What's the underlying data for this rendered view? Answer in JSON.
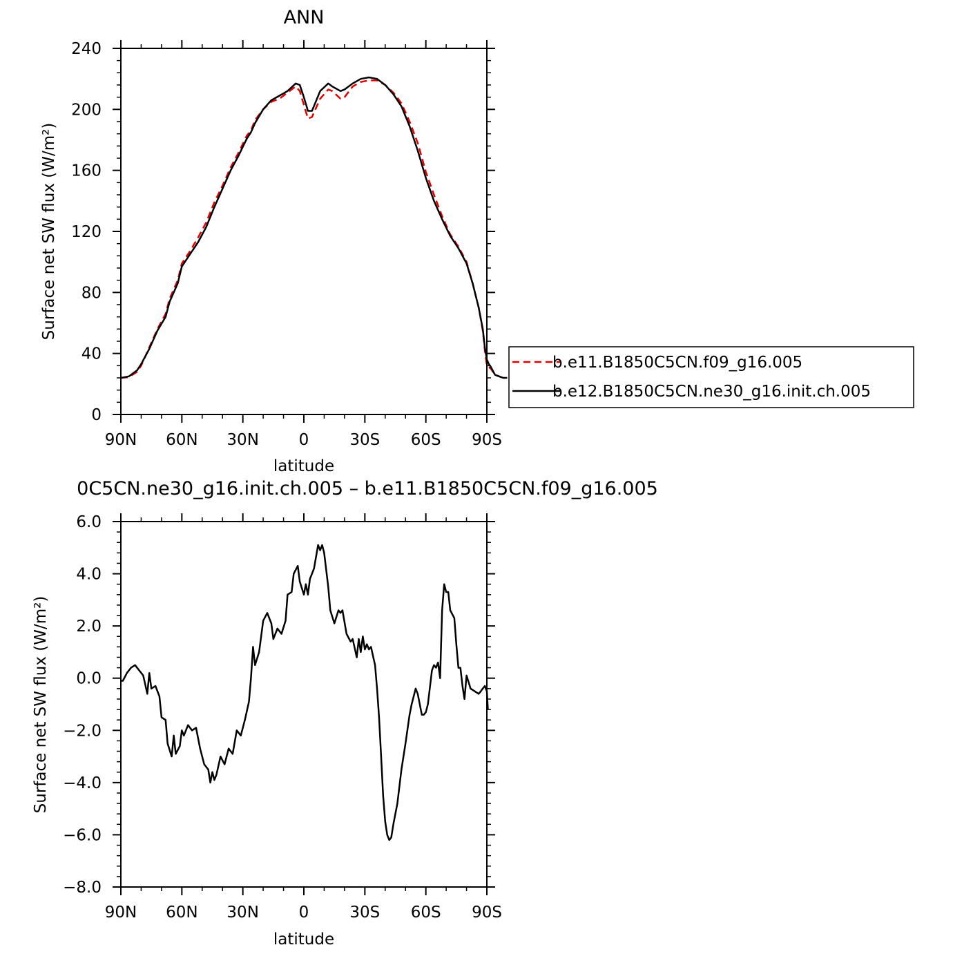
{
  "chart_data": [
    {
      "type": "line",
      "title": "ANN",
      "xlabel": "latitude",
      "ylabel": "Surface net SW flux (W/m²)",
      "xlim": [
        90,
        -90
      ],
      "ylim": [
        0,
        240
      ],
      "xticks": [
        90,
        60,
        30,
        0,
        -30,
        -60,
        -90
      ],
      "xtick_labels": [
        "90N",
        "60N",
        "30N",
        "0",
        "30S",
        "60S",
        "90S"
      ],
      "yticks": [
        0,
        40,
        80,
        120,
        160,
        200,
        240
      ],
      "ytick_labels": [
        "0",
        "40",
        "80",
        "120",
        "160",
        "200",
        "240"
      ],
      "legend": "right",
      "series": [
        {
          "name": "b.e11.B1850C5CN.f09_g16.005",
          "color": "#e00000",
          "dash": "dashed",
          "points": [
            [
              90,
              24
            ],
            [
              86,
              24.5
            ],
            [
              82,
              28
            ],
            [
              80,
              32
            ],
            [
              76,
              44
            ],
            [
              72,
              56
            ],
            [
              68,
              66
            ],
            [
              66,
              76
            ],
            [
              62,
              88
            ],
            [
              60,
              99
            ],
            [
              56,
              107
            ],
            [
              52,
              116
            ],
            [
              48,
              126
            ],
            [
              44,
              139
            ],
            [
              40,
              150
            ],
            [
              36,
              162
            ],
            [
              32,
              172
            ],
            [
              28,
              183
            ],
            [
              26,
              186
            ],
            [
              24,
              193
            ],
            [
              20,
              200
            ],
            [
              16,
              205
            ],
            [
              12,
              207
            ],
            [
              8,
              211
            ],
            [
              4,
              215
            ],
            [
              2,
              212
            ],
            [
              0,
              203
            ],
            [
              -2,
              194
            ],
            [
              -4,
              195
            ],
            [
              -8,
              207
            ],
            [
              -12,
              213
            ],
            [
              -14,
              212
            ],
            [
              -18,
              207
            ],
            [
              -20,
              208
            ],
            [
              -24,
              215
            ],
            [
              -28,
              218
            ],
            [
              -32,
              219
            ],
            [
              -36,
              219
            ],
            [
              -40,
              216
            ],
            [
              -44,
              211
            ],
            [
              -48,
              204
            ],
            [
              -52,
              192
            ],
            [
              -56,
              178
            ],
            [
              -60,
              159
            ],
            [
              -64,
              144
            ],
            [
              -68,
              130
            ],
            [
              -72,
              118
            ],
            [
              -76,
              110
            ],
            [
              -80,
              100
            ],
            [
              -83,
              86
            ],
            [
              -86,
              70
            ],
            [
              -88,
              55
            ],
            [
              -89,
              42
            ],
            [
              -90,
              32
            ],
            [
              -91,
              31
            ],
            [
              -92,
              30
            ],
            [
              -94,
              26
            ],
            [
              -96,
              25
            ],
            [
              -98,
              24
            ],
            [
              -100,
              24
            ]
          ]
        },
        {
          "name": "b.e12.B1850C5CN.ne30_g16.init.ch.005",
          "color": "#000000",
          "dash": "solid",
          "points": [
            [
              90,
              24
            ],
            [
              86,
              25
            ],
            [
              82,
              29
            ],
            [
              80,
              33
            ],
            [
              76,
              43
            ],
            [
              72,
              55
            ],
            [
              68,
              64
            ],
            [
              66,
              74
            ],
            [
              62,
              86
            ],
            [
              60,
              97
            ],
            [
              56,
              105
            ],
            [
              52,
              113
            ],
            [
              48,
              123
            ],
            [
              44,
              136
            ],
            [
              40,
              148
            ],
            [
              36,
              160
            ],
            [
              32,
              170
            ],
            [
              28,
              181
            ],
            [
              26,
              185
            ],
            [
              24,
              191
            ],
            [
              20,
              200
            ],
            [
              16,
              206
            ],
            [
              12,
              209
            ],
            [
              8,
              212
            ],
            [
              4,
              217
            ],
            [
              2,
              216
            ],
            [
              0,
              208
            ],
            [
              -2,
              199
            ],
            [
              -4,
              199
            ],
            [
              -8,
              212
            ],
            [
              -12,
              217
            ],
            [
              -14,
              215
            ],
            [
              -18,
              212
            ],
            [
              -20,
              213
            ],
            [
              -24,
              217
            ],
            [
              -28,
              220
            ],
            [
              -32,
              221
            ],
            [
              -36,
              220
            ],
            [
              -40,
              216
            ],
            [
              -44,
              210
            ],
            [
              -48,
              202
            ],
            [
              -52,
              189
            ],
            [
              -56,
              173
            ],
            [
              -60,
              155
            ],
            [
              -64,
              140
            ],
            [
              -68,
              128
            ],
            [
              -72,
              117
            ],
            [
              -76,
              109
            ],
            [
              -80,
              99
            ],
            [
              -83,
              86
            ],
            [
              -86,
              70
            ],
            [
              -88,
              56
            ],
            [
              -89,
              44
            ],
            [
              -90,
              36
            ],
            [
              -91,
              33
            ],
            [
              -92,
              31
            ],
            [
              -94,
              26
            ],
            [
              -96,
              25
            ],
            [
              -98,
              24
            ],
            [
              -100,
              24
            ]
          ]
        }
      ]
    },
    {
      "type": "line",
      "title": "0C5CN.ne30_g16.init.ch.005 – b.e11.B1850C5CN.f09_g16.005",
      "xlabel": "latitude",
      "ylabel": "Surface net SW flux (W/m²)",
      "xlim": [
        90,
        -90
      ],
      "ylim": [
        -8,
        6
      ],
      "xticks": [
        90,
        60,
        30,
        0,
        -30,
        -60,
        -90
      ],
      "xtick_labels": [
        "90N",
        "60N",
        "30N",
        "0",
        "30S",
        "60S",
        "90S"
      ],
      "yticks": [
        -8,
        -6,
        -4,
        -2,
        0,
        2,
        4,
        6
      ],
      "ytick_labels": [
        "−8.0",
        "−6.0",
        "−4.0",
        "−2.0",
        "0.0",
        "2.0",
        "4.0",
        "6.0"
      ],
      "series": [
        {
          "color": "#000000",
          "points": [
            [
              90,
              -0.1
            ],
            [
              89,
              -0.1
            ],
            [
              87,
              0.2
            ],
            [
              85,
              0.4
            ],
            [
              83,
              0.5
            ],
            [
              81,
              0.3
            ],
            [
              79,
              0.1
            ],
            [
              77,
              -0.6
            ],
            [
              76,
              0.2
            ],
            [
              75,
              -0.4
            ],
            [
              73,
              -0.3
            ],
            [
              71,
              -0.7
            ],
            [
              70,
              -1.5
            ],
            [
              68,
              -1.6
            ],
            [
              67,
              -2.5
            ],
            [
              65,
              -3.0
            ],
            [
              64,
              -2.2
            ],
            [
              63,
              -2.9
            ],
            [
              61,
              -2.6
            ],
            [
              60,
              -2.0
            ],
            [
              59,
              -2.2
            ],
            [
              57,
              -1.8
            ],
            [
              55,
              -2.0
            ],
            [
              53,
              -1.9
            ],
            [
              51,
              -2.7
            ],
            [
              49,
              -3.3
            ],
            [
              47,
              -3.5
            ],
            [
              46,
              -4.0
            ],
            [
              45,
              -3.6
            ],
            [
              44,
              -3.9
            ],
            [
              43,
              -3.7
            ],
            [
              41,
              -3.0
            ],
            [
              39,
              -3.3
            ],
            [
              37,
              -2.7
            ],
            [
              35,
              -2.9
            ],
            [
              33,
              -2.0
            ],
            [
              31,
              -2.2
            ],
            [
              29,
              -1.6
            ],
            [
              27,
              -0.9
            ],
            [
              26,
              0.0
            ],
            [
              25,
              1.2
            ],
            [
              24,
              0.5
            ],
            [
              22,
              1.0
            ],
            [
              20,
              2.2
            ],
            [
              18,
              2.5
            ],
            [
              16,
              2.1
            ],
            [
              15,
              1.5
            ],
            [
              13,
              1.9
            ],
            [
              11,
              1.7
            ],
            [
              9,
              2.2
            ],
            [
              8,
              3.2
            ],
            [
              6,
              3.3
            ],
            [
              5,
              4.0
            ],
            [
              3,
              4.3
            ],
            [
              2,
              3.7
            ],
            [
              0,
              3.2
            ],
            [
              -1,
              3.6
            ],
            [
              -2,
              3.2
            ],
            [
              -3,
              3.8
            ],
            [
              -5,
              4.2
            ],
            [
              -7,
              5.1
            ],
            [
              -8,
              4.9
            ],
            [
              -9,
              5.1
            ],
            [
              -10,
              4.8
            ],
            [
              -12,
              3.5
            ],
            [
              -13,
              2.6
            ],
            [
              -15,
              2.1
            ],
            [
              -17,
              2.6
            ],
            [
              -18,
              2.5
            ],
            [
              -19,
              2.6
            ],
            [
              -21,
              1.7
            ],
            [
              -23,
              1.4
            ],
            [
              -24,
              1.5
            ],
            [
              -26,
              0.8
            ],
            [
              -27,
              1.5
            ],
            [
              -28,
              1.0
            ],
            [
              -29,
              1.6
            ],
            [
              -30,
              1.1
            ],
            [
              -31,
              1.3
            ],
            [
              -32,
              1.1
            ],
            [
              -33,
              1.2
            ],
            [
              -35,
              0.5
            ],
            [
              -36,
              -0.4
            ],
            [
              -37,
              -1.5
            ],
            [
              -38,
              -3.0
            ],
            [
              -39,
              -4.5
            ],
            [
              -40,
              -5.5
            ],
            [
              -41,
              -6.0
            ],
            [
              -42,
              -6.2
            ],
            [
              -43,
              -6.1
            ],
            [
              -44,
              -5.6
            ],
            [
              -46,
              -4.8
            ],
            [
              -48,
              -3.5
            ],
            [
              -50,
              -2.5
            ],
            [
              -52,
              -1.4
            ],
            [
              -53,
              -1.0
            ],
            [
              -55,
              -0.4
            ],
            [
              -56,
              -0.6
            ],
            [
              -58,
              -1.4
            ],
            [
              -59,
              -1.4
            ],
            [
              -60,
              -1.3
            ],
            [
              -61,
              -1.0
            ],
            [
              -63,
              0.3
            ],
            [
              -64,
              0.5
            ],
            [
              -65,
              0.4
            ],
            [
              -66,
              0.6
            ],
            [
              -67,
              0.0
            ],
            [
              -68,
              2.6
            ],
            [
              -69,
              3.6
            ],
            [
              -70,
              3.3
            ],
            [
              -71,
              3.3
            ],
            [
              -72,
              2.6
            ],
            [
              -74,
              2.3
            ],
            [
              -75,
              1.3
            ],
            [
              -76,
              0.4
            ],
            [
              -77,
              0.4
            ],
            [
              -78,
              -0.3
            ],
            [
              -79,
              -0.8
            ],
            [
              -80,
              0.1
            ],
            [
              -82,
              -0.4
            ],
            [
              -84,
              -0.5
            ],
            [
              -86,
              -0.6
            ],
            [
              -87,
              -0.5
            ],
            [
              -88,
              -0.4
            ],
            [
              -89,
              -0.3
            ],
            [
              -90,
              -0.5
            ],
            [
              -90.5,
              -1.2
            ]
          ]
        }
      ]
    }
  ]
}
